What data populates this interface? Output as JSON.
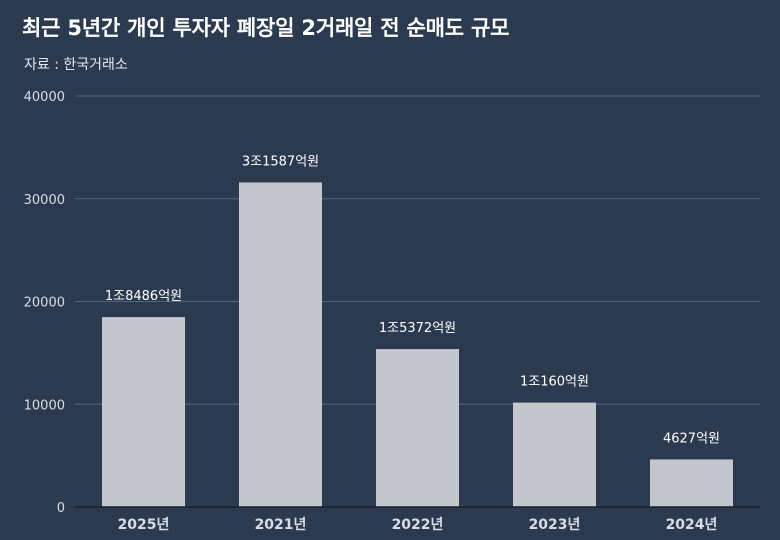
{
  "title": "최근 5년간 개인 투자자 폐장일 2거래일 전 순매도 규모",
  "subtitle": "자료 : 한국거래소",
  "colors": {
    "background": "#2c3a50",
    "bar": "#c3c6cc",
    "grid": "#55647a",
    "axis_text": "#d7dde6",
    "label_text": "#ffffff"
  },
  "chart_data": {
    "type": "bar",
    "categories": [
      "2025년",
      "2021년",
      "2022년",
      "2023년",
      "2024년"
    ],
    "values": [
      18486,
      31587,
      15372,
      10160,
      4627
    ],
    "data_labels": [
      "1조8486억원",
      "3조1587억원",
      "1조5372억원",
      "1조160억원",
      "4627억원"
    ],
    "title": "최근 5년간 개인 투자자 폐장일 2거래일 전 순매도 규모",
    "xlabel": "",
    "ylabel": "",
    "ylim": [
      0,
      40000
    ],
    "yticks": [
      0,
      10000,
      20000,
      30000,
      40000
    ],
    "ytick_labels": [
      "0",
      "10000",
      "20000",
      "30000",
      "40000"
    ],
    "grid": true
  }
}
